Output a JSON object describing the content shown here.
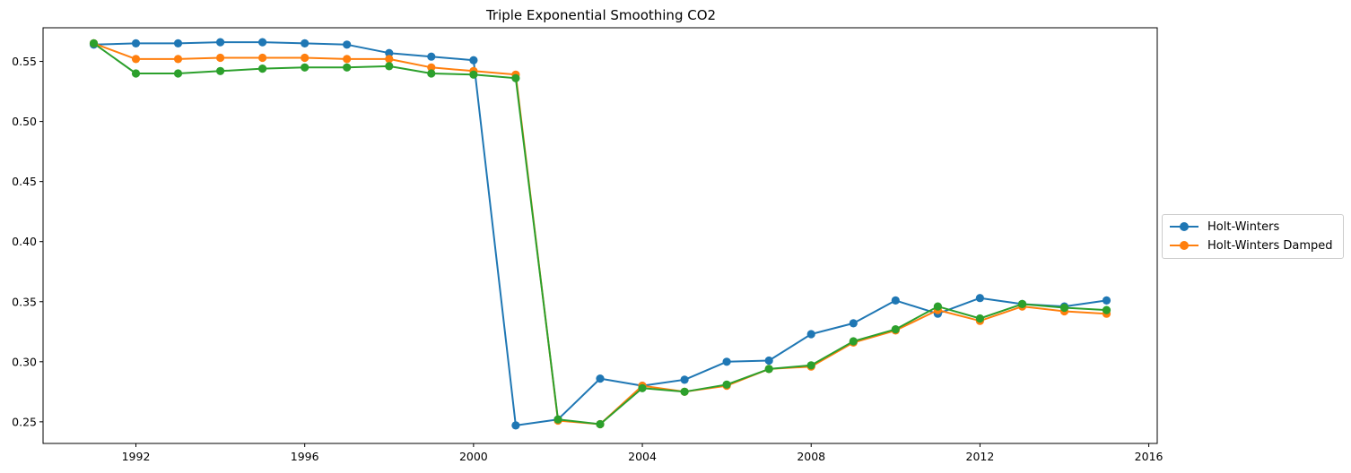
{
  "chart_data": {
    "type": "line",
    "title": "Triple Exponential Smoothing CO2",
    "xlabel": "",
    "ylabel": "",
    "xlim": [
      1989.8,
      2016.2
    ],
    "ylim": [
      0.232,
      0.578
    ],
    "x_ticks": [
      1992,
      1996,
      2000,
      2004,
      2008,
      2012,
      2016
    ],
    "y_ticks": [
      0.25,
      0.3,
      0.35,
      0.4,
      0.45,
      0.5,
      0.55
    ],
    "x": [
      1991,
      1992,
      1993,
      1994,
      1995,
      1996,
      1997,
      1998,
      1999,
      2000,
      2001,
      2002,
      2003,
      2004,
      2005,
      2006,
      2007,
      2008,
      2009,
      2010,
      2011,
      2012,
      2013,
      2014,
      2015
    ],
    "grid": false,
    "legend_placement": "center-right outside",
    "series": [
      {
        "name": "Holt-Winters",
        "color": "#1f77b4",
        "values": [
          0.564,
          0.565,
          0.565,
          0.566,
          0.566,
          0.565,
          0.564,
          0.557,
          0.554,
          0.551,
          0.247,
          0.252,
          0.286,
          0.28,
          0.285,
          0.3,
          0.301,
          0.323,
          0.332,
          0.351,
          0.34,
          0.353,
          0.348,
          0.346,
          0.351
        ]
      },
      {
        "name": "Holt-Winters Damped",
        "color": "#ff7f0e",
        "values": [
          0.565,
          0.552,
          0.552,
          0.553,
          0.553,
          0.553,
          0.552,
          0.552,
          0.545,
          0.542,
          0.539,
          0.251,
          0.248,
          0.28,
          0.275,
          0.28,
          0.294,
          0.296,
          0.316,
          0.326,
          0.343,
          0.334,
          0.346,
          0.342,
          0.34
        ]
      },
      {
        "name": "",
        "color": "#2ca02c",
        "values": [
          0.565,
          0.54,
          0.54,
          0.542,
          0.544,
          0.545,
          0.545,
          0.546,
          0.54,
          0.539,
          0.536,
          0.252,
          0.248,
          0.278,
          0.275,
          0.281,
          0.294,
          0.297,
          0.317,
          0.327,
          0.346,
          0.336,
          0.348,
          0.345,
          0.343
        ]
      }
    ]
  }
}
